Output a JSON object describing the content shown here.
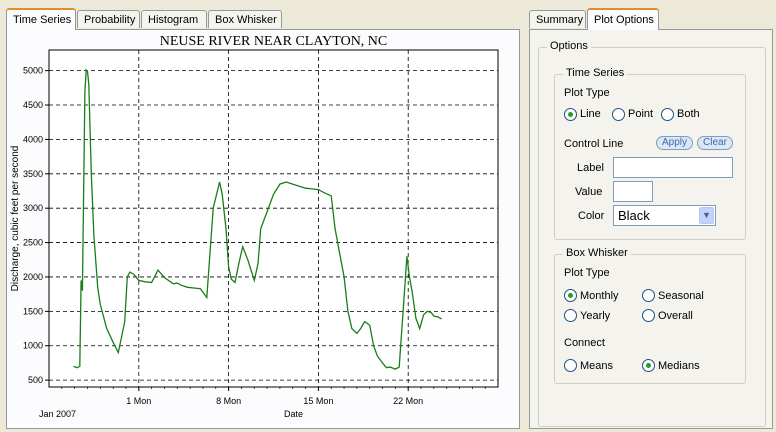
{
  "left_tabs": [
    "Time Series",
    "Probability",
    "Histogram",
    "Box Whisker"
  ],
  "right_tabs": [
    "Summary",
    "Plot Options"
  ],
  "options": {
    "title": "Options",
    "time_series": {
      "title": "Time Series",
      "plot_type_label": "Plot Type",
      "plot_types": [
        "Line",
        "Point",
        "Both"
      ],
      "selected_plot_type": "Line",
      "control_line_label": "Control Line",
      "apply_label": "Apply",
      "clear_label": "Clear",
      "label_label": "Label",
      "label_value": "",
      "value_label": "Value",
      "value_value": "",
      "color_label": "Color",
      "color_value": "Black"
    },
    "box_whisker": {
      "title": "Box Whisker",
      "plot_type_label": "Plot Type",
      "plot_types": [
        "Monthly",
        "Seasonal",
        "Yearly",
        "Overall"
      ],
      "selected_plot_type": "Monthly",
      "connect_label": "Connect",
      "connect_options": [
        "Means",
        "Medians"
      ],
      "selected_connect": "Medians"
    }
  },
  "chart_data": {
    "type": "line",
    "title": "NEUSE RIVER NEAR CLAYTON, NC",
    "xlabel": "Date",
    "ylabel": "Discharge, cubic feet per second",
    "x_start_label": "Jan 2007",
    "x_ticks": [
      {
        "day": 7,
        "label": "1 Mon"
      },
      {
        "day": 14,
        "label": "8 Mon"
      },
      {
        "day": 21,
        "label": "15 Mon"
      },
      {
        "day": 28,
        "label": "22 Mon"
      }
    ],
    "xlim": [
      0,
      35
    ],
    "ylim": [
      400,
      5300
    ],
    "y_ticks": [
      500,
      1000,
      1500,
      2000,
      2500,
      3000,
      3500,
      4000,
      4500,
      5000
    ],
    "grid": true,
    "line_color": "#1a7d1a",
    "series": [
      {
        "x": [
          1.9,
          2.2,
          2.4,
          2.5,
          2.6,
          2.8,
          2.9,
          3.0,
          3.1,
          3.3,
          3.5,
          3.8,
          4.0,
          4.5,
          5.0,
          5.4,
          5.9,
          6.1,
          6.3,
          6.6,
          7.0,
          7.5,
          8.0,
          8.5,
          9.0,
          9.7,
          10.0,
          10.3,
          10.8,
          11.3,
          11.8,
          12.3,
          12.8,
          13.3,
          13.5,
          13.8,
          14.0,
          14.2,
          14.5,
          14.8,
          15.1,
          15.5,
          16.0,
          16.3,
          16.5,
          17.0,
          17.5,
          18.0,
          18.5,
          19.0,
          19.5,
          20.0,
          20.5,
          21.0,
          21.5,
          22.0,
          22.3,
          22.7,
          23.0,
          23.3,
          23.6,
          24.0,
          24.3,
          24.6,
          25.0,
          25.3,
          25.6,
          26.0,
          26.3,
          26.6,
          27.0,
          27.3,
          27.6,
          27.9,
          28.1,
          28.3,
          28.6,
          28.9,
          29.2,
          29.5,
          29.8,
          30.0,
          30.3,
          30.6
        ],
        "y": [
          700,
          680,
          700,
          1950,
          1800,
          4700,
          5010,
          4990,
          4800,
          3500,
          2600,
          1850,
          1600,
          1250,
          1050,
          900,
          1350,
          2000,
          2070,
          2040,
          1950,
          1930,
          1920,
          2100,
          1990,
          1900,
          1910,
          1880,
          1850,
          1840,
          1830,
          1700,
          3000,
          3380,
          3200,
          2700,
          2150,
          1970,
          1920,
          2200,
          2440,
          2250,
          1950,
          2200,
          2700,
          2950,
          3200,
          3350,
          3380,
          3350,
          3320,
          3290,
          3280,
          3270,
          3220,
          3180,
          2700,
          2300,
          2000,
          1500,
          1250,
          1180,
          1250,
          1350,
          1300,
          1000,
          850,
          750,
          680,
          690,
          660,
          690,
          1500,
          2300,
          2000,
          1800,
          1400,
          1250,
          1450,
          1500,
          1480,
          1430,
          1420,
          1390
        ]
      }
    ]
  }
}
